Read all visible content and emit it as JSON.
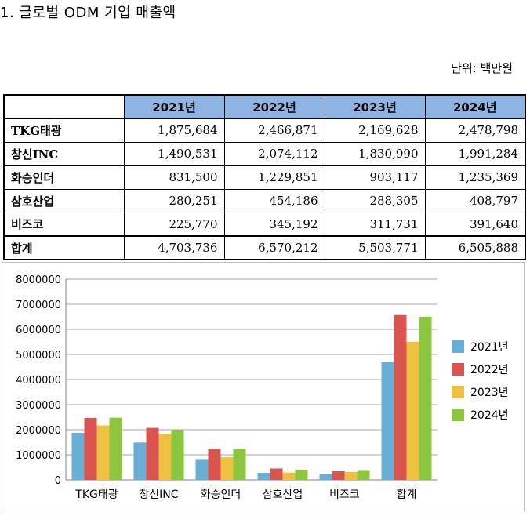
{
  "document": {
    "title": "1. 글로벌 ODM 기업 매출액",
    "unit": "단위: 백만원"
  },
  "table": {
    "columns": [
      "2021년",
      "2022년",
      "2023년",
      "2024년"
    ],
    "rows": [
      {
        "label": "TKG태광",
        "values": [
          "1,875,684",
          "2,466,871",
          "2,169,628",
          "2,478,798"
        ]
      },
      {
        "label": "창신INC",
        "values": [
          "1,490,531",
          "2,074,112",
          "1,830,990",
          "1,991,284"
        ]
      },
      {
        "label": "화승인더",
        "values": [
          "831,500",
          "1,229,851",
          "903,117",
          "1,235,369"
        ]
      },
      {
        "label": "삼호산업",
        "values": [
          "280,251",
          "454,186",
          "288,305",
          "408,797"
        ]
      },
      {
        "label": "비즈코",
        "values": [
          "225,770",
          "345,192",
          "311,731",
          "391,640"
        ]
      },
      {
        "label": "합계",
        "values": [
          "4,703,736",
          "6,570,212",
          "5,503,771",
          "6,505,888"
        ]
      }
    ]
  },
  "chart_data": {
    "type": "bar",
    "title": "",
    "xlabel": "",
    "ylabel": "",
    "categories": [
      "TKG태광",
      "창신INC",
      "화승인더",
      "삼호산업",
      "비즈코",
      "합계"
    ],
    "series": [
      {
        "name": "2021년",
        "color": "#6aaed6",
        "values": [
          1875684,
          1490531,
          831500,
          280251,
          225770,
          4703736
        ]
      },
      {
        "name": "2022년",
        "color": "#d9534f",
        "values": [
          2466871,
          2074112,
          1229851,
          454186,
          345192,
          6570212
        ]
      },
      {
        "name": "2023년",
        "color": "#f0c040",
        "values": [
          2169628,
          1830990,
          903117,
          288305,
          311731,
          5503771
        ]
      },
      {
        "name": "2024년",
        "color": "#8cc63f",
        "values": [
          2478798,
          1991284,
          1235369,
          408797,
          391640,
          6505888
        ]
      }
    ],
    "yticks": [
      "0",
      "1000000",
      "2000000",
      "3000000",
      "4000000",
      "5000000",
      "6000000",
      "7000000",
      "8000000"
    ],
    "ylim": [
      0,
      8000000
    ],
    "grid": true,
    "legend": "right"
  }
}
